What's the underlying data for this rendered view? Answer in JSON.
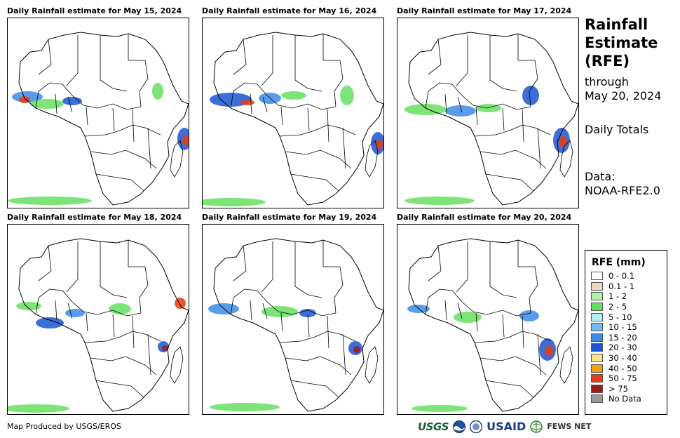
{
  "panels": [
    {
      "title": "Daily Rainfall estimate for May 15, 2024",
      "day": 15
    },
    {
      "title": "Daily Rainfall estimate for May 16, 2024",
      "day": 16
    },
    {
      "title": "Daily Rainfall estimate for May 17, 2024",
      "day": 17
    },
    {
      "title": "Daily Rainfall estimate for May 18, 2024",
      "day": 18
    },
    {
      "title": "Daily Rainfall estimate for May 19, 2024",
      "day": 19
    },
    {
      "title": "Daily Rainfall estimate for May 20, 2024",
      "day": 20
    }
  ],
  "sidebar": {
    "title_line1": "Rainfall",
    "title_line2": "Estimate",
    "title_line3": "(RFE)",
    "through_label": "through",
    "through_date": "May 20, 2024",
    "totals_label": "Daily Totals",
    "data_label": "Data:",
    "data_source": "NOAA-RFE2.0"
  },
  "legend": {
    "title": "RFE (mm)",
    "items": [
      {
        "label": "0 - 0.1",
        "color": "#ffffff"
      },
      {
        "label": "0.1 - 1",
        "color": "#e9d9c0"
      },
      {
        "label": "1 - 2",
        "color": "#b4f0a8"
      },
      {
        "label": "2 - 5",
        "color": "#66e060"
      },
      {
        "label": "5 - 10",
        "color": "#b0f0f5"
      },
      {
        "label": "10 - 15",
        "color": "#78b8f0"
      },
      {
        "label": "15 - 20",
        "color": "#3c8ce6"
      },
      {
        "label": "20 - 30",
        "color": "#1a55d4"
      },
      {
        "label": "30 - 40",
        "color": "#fae38a"
      },
      {
        "label": "40 - 50",
        "color": "#f5a00a"
      },
      {
        "label": "50 - 75",
        "color": "#e83c10"
      },
      {
        "label": "> 75",
        "color": "#a01818"
      },
      {
        "label": "No Data",
        "color": "#9a9a9a"
      }
    ]
  },
  "footer": {
    "credit": "Map Produced by USGS/EROS"
  },
  "logos": {
    "usgs": "USGS",
    "usaid": "USAID",
    "fews": "FEWS NET",
    "noaa_icon": "noaa-seal-icon",
    "doi_icon": "doi-seal-icon",
    "fews_icon": "fews-globe-icon"
  }
}
